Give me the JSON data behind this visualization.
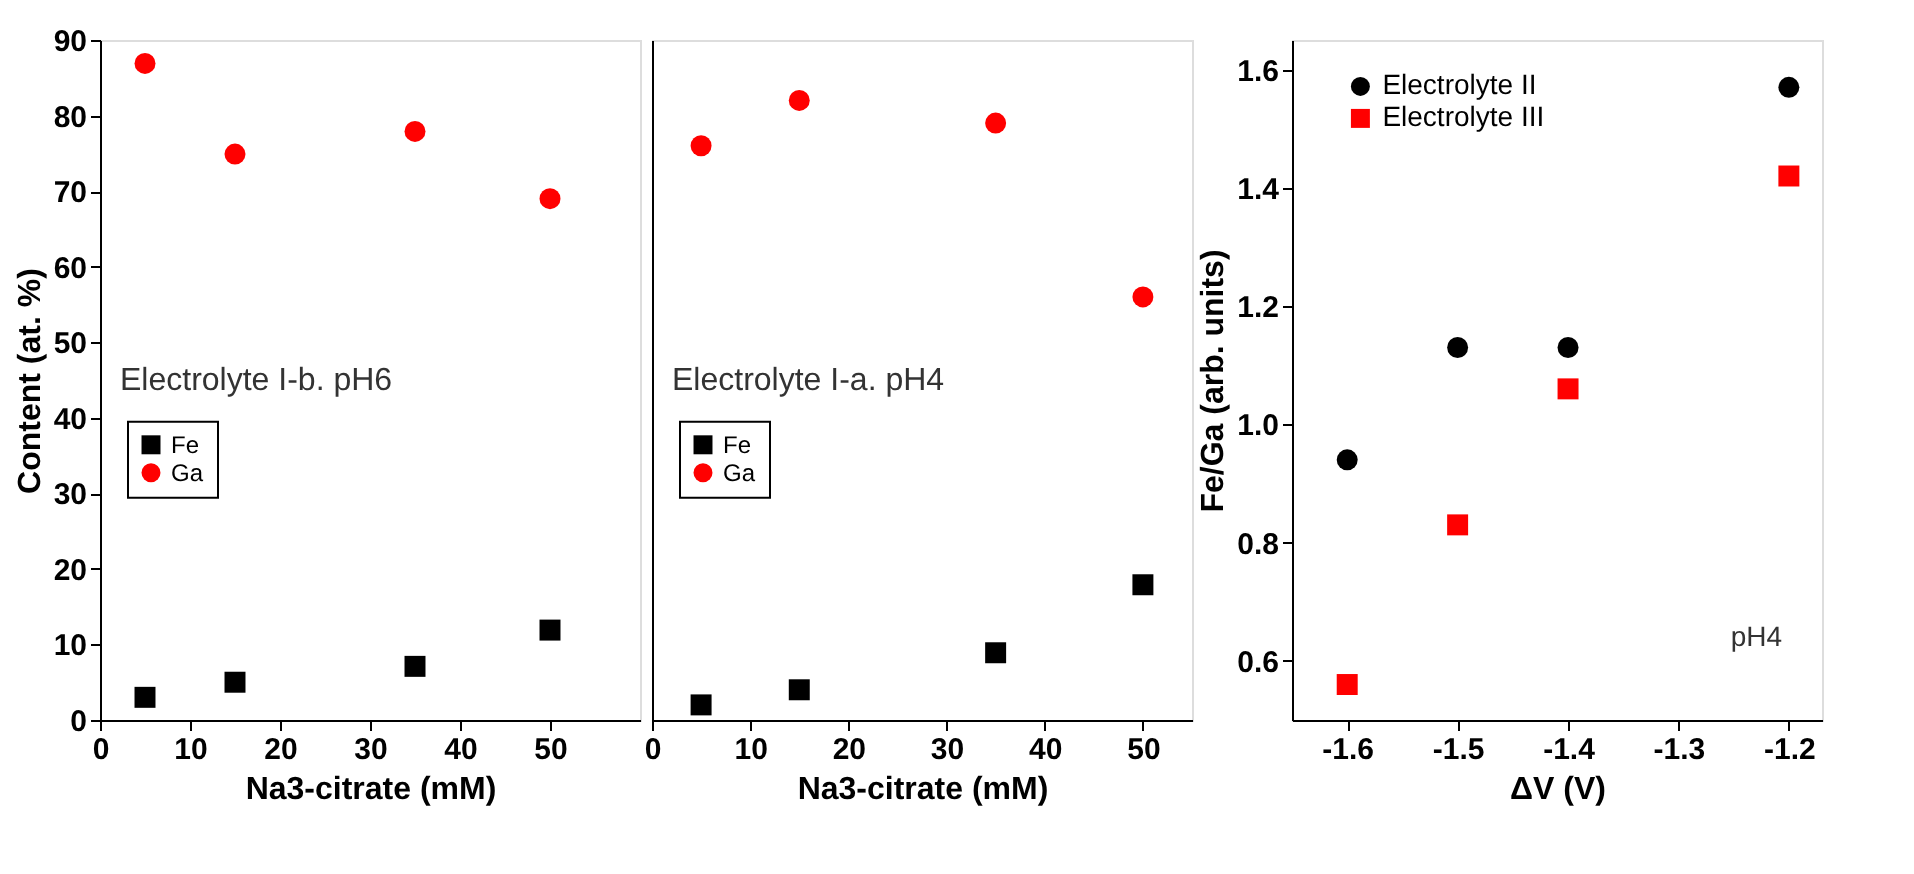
{
  "chart_data": [
    {
      "type": "scatter",
      "xlabel": "Na3-citrate (mM)",
      "ylabel": "Content (at. %)",
      "xlim": [
        0,
        60
      ],
      "xticks": [
        0,
        10,
        20,
        30,
        40,
        50
      ],
      "ylim": [
        0,
        90
      ],
      "yticks": [
        0,
        10,
        20,
        30,
        40,
        50,
        60,
        70,
        80,
        90
      ],
      "x": [
        5,
        15,
        35,
        50
      ],
      "grid": false,
      "legend": "left",
      "annotations": [
        "Electrolyte I-b. pH6"
      ],
      "series": [
        {
          "name": "Fe",
          "color": "#000000",
          "marker": "square",
          "values": [
            3,
            5,
            7.1,
            11.9
          ]
        },
        {
          "name": "Ga",
          "color": "#ff0000",
          "marker": "circle",
          "values": [
            86.9,
            74.9,
            77.9,
            69
          ]
        }
      ]
    },
    {
      "type": "scatter",
      "xlabel": "Na3-citrate (mM)",
      "xlim": [
        0,
        55
      ],
      "xticks": [
        0,
        10,
        20,
        30,
        40,
        50
      ],
      "ylim": [
        0,
        90
      ],
      "yticks": [
        0,
        10,
        20,
        30,
        40,
        50,
        60,
        70,
        80,
        90
      ],
      "tick_labels": "x",
      "x": [
        5,
        15,
        35,
        50
      ],
      "grid": false,
      "legend": "left",
      "annotations": [
        "Electrolyte I-a. pH4"
      ],
      "series": [
        {
          "name": "Fe",
          "color": "#000000",
          "marker": "square",
          "values": [
            2,
            4,
            8.9,
            17.9
          ]
        },
        {
          "name": "Ga",
          "color": "#ff0000",
          "marker": "circle",
          "values": [
            76,
            82,
            79,
            56
          ]
        }
      ]
    },
    {
      "type": "scatter",
      "xlabel": "ΔV (V)",
      "ylabel": "Fe/Ga (arb. units)",
      "xlim": [
        -1.65,
        -1.17
      ],
      "xticks": [
        -1.6,
        -1.5,
        -1.4,
        -1.3,
        -1.2
      ],
      "ylim": [
        0.5,
        1.65
      ],
      "yticks": [
        0.6,
        0.8,
        {
          "value": 1,
          "label": "1.0"
        },
        1.2,
        1.4,
        1.6
      ],
      "x": [
        -1.6,
        -1.5,
        -1.4,
        -1.2
      ],
      "grid": false,
      "legend": "top left",
      "annotations": [
        "pH4"
      ],
      "series": [
        {
          "name": "Electrolyte II",
          "color": "#000000",
          "marker": "circle",
          "values": [
            0.94,
            1.13,
            1.13,
            1.57
          ]
        },
        {
          "name": "Electrolyte III",
          "color": "#ff0000",
          "marker": "square",
          "values": [
            0.56,
            0.83,
            1.06,
            1.42
          ]
        }
      ]
    }
  ]
}
